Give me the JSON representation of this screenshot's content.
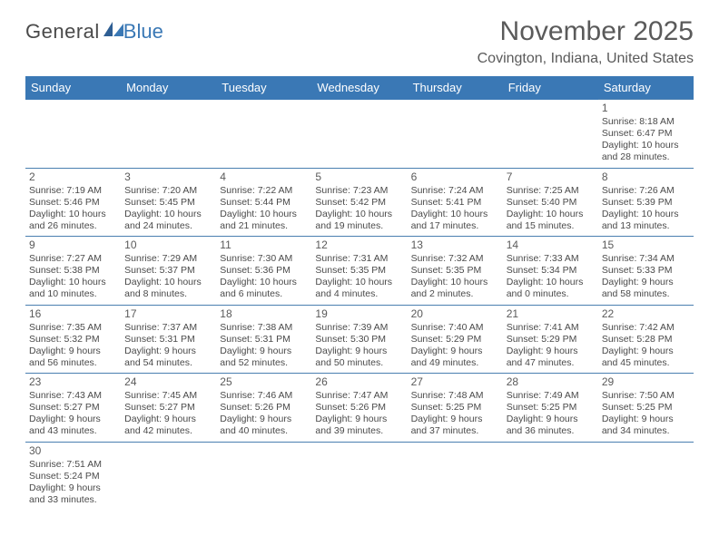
{
  "logo": {
    "general": "General",
    "blue": "Blue"
  },
  "title": "November 2025",
  "location": "Covington, Indiana, United States",
  "colors": {
    "header_bg": "#3a78b5",
    "header_text": "#ffffff",
    "border": "#4a7fb0",
    "text": "#4a4a4a",
    "title_text": "#5a5a5a",
    "logo_blue": "#3a78b5"
  },
  "daysOfWeek": [
    "Sunday",
    "Monday",
    "Tuesday",
    "Wednesday",
    "Thursday",
    "Friday",
    "Saturday"
  ],
  "weeks": [
    [
      null,
      null,
      null,
      null,
      null,
      null,
      {
        "n": "1",
        "sr": "Sunrise: 8:18 AM",
        "ss": "Sunset: 6:47 PM",
        "dl": "Daylight: 10 hours and 28 minutes."
      }
    ],
    [
      {
        "n": "2",
        "sr": "Sunrise: 7:19 AM",
        "ss": "Sunset: 5:46 PM",
        "dl": "Daylight: 10 hours and 26 minutes."
      },
      {
        "n": "3",
        "sr": "Sunrise: 7:20 AM",
        "ss": "Sunset: 5:45 PM",
        "dl": "Daylight: 10 hours and 24 minutes."
      },
      {
        "n": "4",
        "sr": "Sunrise: 7:22 AM",
        "ss": "Sunset: 5:44 PM",
        "dl": "Daylight: 10 hours and 21 minutes."
      },
      {
        "n": "5",
        "sr": "Sunrise: 7:23 AM",
        "ss": "Sunset: 5:42 PM",
        "dl": "Daylight: 10 hours and 19 minutes."
      },
      {
        "n": "6",
        "sr": "Sunrise: 7:24 AM",
        "ss": "Sunset: 5:41 PM",
        "dl": "Daylight: 10 hours and 17 minutes."
      },
      {
        "n": "7",
        "sr": "Sunrise: 7:25 AM",
        "ss": "Sunset: 5:40 PM",
        "dl": "Daylight: 10 hours and 15 minutes."
      },
      {
        "n": "8",
        "sr": "Sunrise: 7:26 AM",
        "ss": "Sunset: 5:39 PM",
        "dl": "Daylight: 10 hours and 13 minutes."
      }
    ],
    [
      {
        "n": "9",
        "sr": "Sunrise: 7:27 AM",
        "ss": "Sunset: 5:38 PM",
        "dl": "Daylight: 10 hours and 10 minutes."
      },
      {
        "n": "10",
        "sr": "Sunrise: 7:29 AM",
        "ss": "Sunset: 5:37 PM",
        "dl": "Daylight: 10 hours and 8 minutes."
      },
      {
        "n": "11",
        "sr": "Sunrise: 7:30 AM",
        "ss": "Sunset: 5:36 PM",
        "dl": "Daylight: 10 hours and 6 minutes."
      },
      {
        "n": "12",
        "sr": "Sunrise: 7:31 AM",
        "ss": "Sunset: 5:35 PM",
        "dl": "Daylight: 10 hours and 4 minutes."
      },
      {
        "n": "13",
        "sr": "Sunrise: 7:32 AM",
        "ss": "Sunset: 5:35 PM",
        "dl": "Daylight: 10 hours and 2 minutes."
      },
      {
        "n": "14",
        "sr": "Sunrise: 7:33 AM",
        "ss": "Sunset: 5:34 PM",
        "dl": "Daylight: 10 hours and 0 minutes."
      },
      {
        "n": "15",
        "sr": "Sunrise: 7:34 AM",
        "ss": "Sunset: 5:33 PM",
        "dl": "Daylight: 9 hours and 58 minutes."
      }
    ],
    [
      {
        "n": "16",
        "sr": "Sunrise: 7:35 AM",
        "ss": "Sunset: 5:32 PM",
        "dl": "Daylight: 9 hours and 56 minutes."
      },
      {
        "n": "17",
        "sr": "Sunrise: 7:37 AM",
        "ss": "Sunset: 5:31 PM",
        "dl": "Daylight: 9 hours and 54 minutes."
      },
      {
        "n": "18",
        "sr": "Sunrise: 7:38 AM",
        "ss": "Sunset: 5:31 PM",
        "dl": "Daylight: 9 hours and 52 minutes."
      },
      {
        "n": "19",
        "sr": "Sunrise: 7:39 AM",
        "ss": "Sunset: 5:30 PM",
        "dl": "Daylight: 9 hours and 50 minutes."
      },
      {
        "n": "20",
        "sr": "Sunrise: 7:40 AM",
        "ss": "Sunset: 5:29 PM",
        "dl": "Daylight: 9 hours and 49 minutes."
      },
      {
        "n": "21",
        "sr": "Sunrise: 7:41 AM",
        "ss": "Sunset: 5:29 PM",
        "dl": "Daylight: 9 hours and 47 minutes."
      },
      {
        "n": "22",
        "sr": "Sunrise: 7:42 AM",
        "ss": "Sunset: 5:28 PM",
        "dl": "Daylight: 9 hours and 45 minutes."
      }
    ],
    [
      {
        "n": "23",
        "sr": "Sunrise: 7:43 AM",
        "ss": "Sunset: 5:27 PM",
        "dl": "Daylight: 9 hours and 43 minutes."
      },
      {
        "n": "24",
        "sr": "Sunrise: 7:45 AM",
        "ss": "Sunset: 5:27 PM",
        "dl": "Daylight: 9 hours and 42 minutes."
      },
      {
        "n": "25",
        "sr": "Sunrise: 7:46 AM",
        "ss": "Sunset: 5:26 PM",
        "dl": "Daylight: 9 hours and 40 minutes."
      },
      {
        "n": "26",
        "sr": "Sunrise: 7:47 AM",
        "ss": "Sunset: 5:26 PM",
        "dl": "Daylight: 9 hours and 39 minutes."
      },
      {
        "n": "27",
        "sr": "Sunrise: 7:48 AM",
        "ss": "Sunset: 5:25 PM",
        "dl": "Daylight: 9 hours and 37 minutes."
      },
      {
        "n": "28",
        "sr": "Sunrise: 7:49 AM",
        "ss": "Sunset: 5:25 PM",
        "dl": "Daylight: 9 hours and 36 minutes."
      },
      {
        "n": "29",
        "sr": "Sunrise: 7:50 AM",
        "ss": "Sunset: 5:25 PM",
        "dl": "Daylight: 9 hours and 34 minutes."
      }
    ],
    [
      {
        "n": "30",
        "sr": "Sunrise: 7:51 AM",
        "ss": "Sunset: 5:24 PM",
        "dl": "Daylight: 9 hours and 33 minutes."
      },
      null,
      null,
      null,
      null,
      null,
      null
    ]
  ]
}
